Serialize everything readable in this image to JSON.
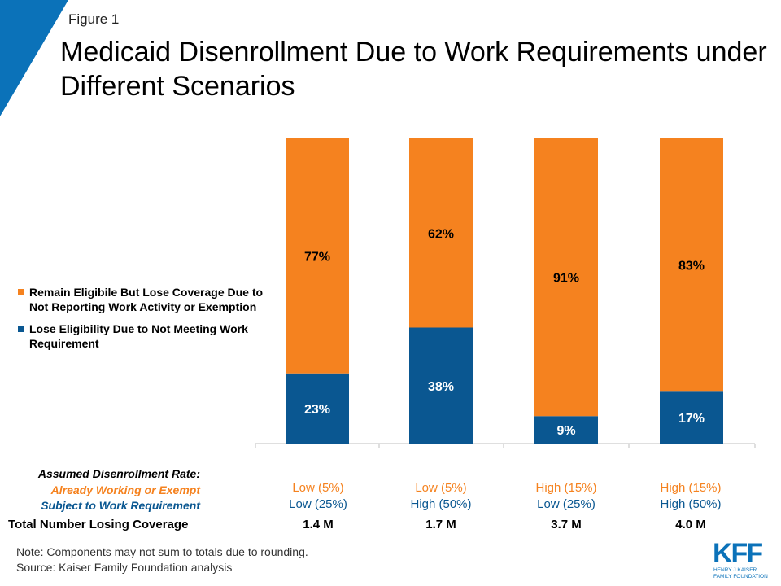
{
  "figure_label": "Figure 1",
  "title": "Medicaid Disenrollment Due to Work Requirements under Different Scenarios",
  "colors": {
    "orange": "#F5821F",
    "blue": "#0A5791",
    "accent": "#0B72B9"
  },
  "legend": [
    {
      "label": "Remain Eligibile But Lose Coverage Due to Not Reporting Work Activity or Exemption",
      "color": "#F5821F"
    },
    {
      "label": "Lose Eligibility Due to Not Meeting Work Requirement",
      "color": "#0A5791"
    }
  ],
  "chart_data": {
    "type": "bar",
    "stacked": true,
    "normalized": true,
    "ylim": [
      0,
      100
    ],
    "categories": [
      "Low (5%) / Low (25%)",
      "Low (5%) / High (50%)",
      "High (15%) / Low (25%)",
      "High (15%) / High (50%)"
    ],
    "series": [
      {
        "name": "Lose Eligibility Due to Not Meeting Work Requirement",
        "color": "#0A5791",
        "values": [
          23,
          38,
          9,
          17
        ],
        "labels": [
          "23%",
          "38%",
          "9%",
          "17%"
        ]
      },
      {
        "name": "Remain Eligibile But Lose Coverage Due to Not Reporting Work Activity or Exemption",
        "color": "#F5821F",
        "values": [
          77,
          62,
          91,
          83
        ],
        "labels": [
          "77%",
          "62%",
          "91%",
          "83%"
        ]
      }
    ]
  },
  "table": {
    "header_label": "Assumed Disenrollment Rate:",
    "row1_label": "Already Working or Exempt",
    "row2_label": "Subject to Work Requirement",
    "total_label": "Total Number Losing Coverage",
    "columns": [
      {
        "row1": "Low (5%)",
        "row2": "Low (25%)",
        "total": "1.4 M"
      },
      {
        "row1": "Low (5%)",
        "row2": "High (50%)",
        "total": "1.7 M"
      },
      {
        "row1": "High (15%)",
        "row2": "Low (25%)",
        "total": "3.7 M"
      },
      {
        "row1": "High (15%)",
        "row2": "High (50%)",
        "total": "4.0 M"
      }
    ]
  },
  "note_line1": "Note: Components may not sum to totals due to rounding.",
  "note_line2": "Source: Kaiser Family Foundation analysis",
  "logo": {
    "mark": "KFF",
    "line1": "HENRY J KAISER",
    "line2": "FAMILY FOUNDATION"
  }
}
